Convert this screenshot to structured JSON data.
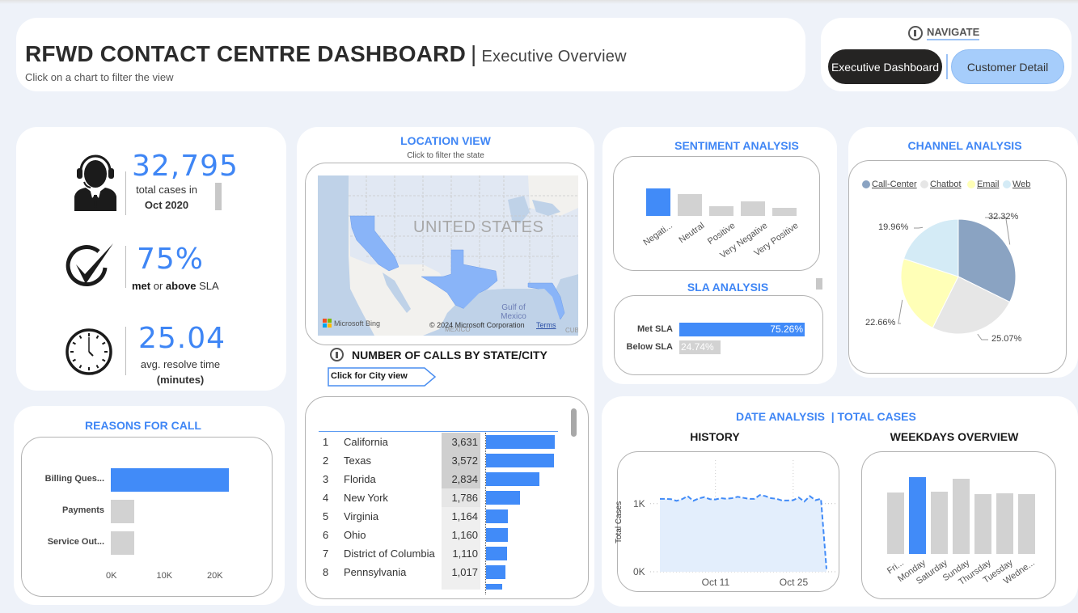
{
  "header": {
    "title": "RFWD CONTACT CENTRE DASHBOARD",
    "separator": "|",
    "subtitle": "Executive Overview",
    "hint": "Click on a chart to filter the view"
  },
  "navigate": {
    "title": "NAVIGATE",
    "buttons": [
      {
        "label": "Executive Dashboard",
        "active": true
      },
      {
        "label": "Customer Detail",
        "active": false
      }
    ]
  },
  "kpis": {
    "total_cases": {
      "value": "32,795",
      "label": "total cases in",
      "period": "Oct 2020",
      "icon": "headset-agent-icon"
    },
    "sla": {
      "value": "75%",
      "label_bold1": "met",
      "label_mid": " or ",
      "label_bold2": "above",
      "label_end": " SLA",
      "icon": "check-circle-icon"
    },
    "resolve": {
      "value": "25.04",
      "label": "avg. resolve time",
      "unit": "(minutes)",
      "icon": "clock-icon"
    }
  },
  "reasons": {
    "title": "REASONS FOR CALL",
    "chart_data": {
      "type": "bar",
      "orientation": "horizontal",
      "categories": [
        "Billing Ques...",
        "Payments",
        "Service Out..."
      ],
      "values": [
        23400,
        4700,
        4700
      ],
      "highlight": "Billing Ques...",
      "xticks": [
        "0K",
        "10K",
        "20K"
      ],
      "xlim": [
        0,
        24000
      ]
    }
  },
  "location": {
    "title": "LOCATION VIEW",
    "hint": "Click to filter the state",
    "map": {
      "country_label": "UNITED STATES",
      "gulf_label": "Gulf of Mexico",
      "mexico_label": "MEXICO",
      "cuba_label": "CUB",
      "bing_label": "Microsoft Bing",
      "copyright": "© 2024 Microsoft Corporation",
      "terms": "Terms",
      "highlighted_states": [
        "California",
        "Texas",
        "Florida"
      ]
    },
    "calls_title": "NUMBER OF CALLS BY STATE/CITY",
    "city_button": "Click for City view",
    "chart_data": {
      "type": "table",
      "rows": [
        {
          "rank": "1",
          "state": "California",
          "value": "3,631",
          "num": 3631
        },
        {
          "rank": "2",
          "state": "Texas",
          "value": "3,572",
          "num": 3572
        },
        {
          "rank": "3",
          "state": "Florida",
          "value": "2,834",
          "num": 2834
        },
        {
          "rank": "4",
          "state": "New York",
          "value": "1,786",
          "num": 1786
        },
        {
          "rank": "5",
          "state": "Virginia",
          "value": "1,164",
          "num": 1164
        },
        {
          "rank": "6",
          "state": "Ohio",
          "value": "1,160",
          "num": 1160
        },
        {
          "rank": "7",
          "state": "District of Columbia",
          "value": "1,110",
          "num": 1110
        },
        {
          "rank": "8",
          "state": "Pennsylvania",
          "value": "1,017",
          "num": 1017
        }
      ]
    }
  },
  "sentiment": {
    "title": "SENTIMENT ANALYSIS",
    "chart_data": {
      "type": "bar",
      "categories": [
        "Negati...",
        "Neutral",
        "Positive",
        "Very Negative",
        "Very Positive"
      ],
      "values": [
        10500,
        8400,
        3700,
        5700,
        3000
      ],
      "highlight": "Negati..."
    }
  },
  "sla": {
    "title": "SLA ANALYSIS",
    "chart_data": {
      "type": "bar",
      "orientation": "horizontal",
      "categories": [
        "Met SLA",
        "Below SLA"
      ],
      "values": [
        75.26,
        24.74
      ],
      "labels": [
        "75.26%",
        "24.74%"
      ]
    }
  },
  "channel": {
    "title": "CHANNEL ANALYSIS",
    "chart_data": {
      "type": "pie",
      "legend": "top-left",
      "slices": [
        {
          "name": "Call-Center",
          "value": 32.32,
          "label": "32.32%",
          "color": "#8aa3c2"
        },
        {
          "name": "Chatbot",
          "value": 25.07,
          "label": "25.07%",
          "color": "#e6e6e6"
        },
        {
          "name": "Email",
          "value": 22.66,
          "label": "22.66%",
          "color": "#ffffb7"
        },
        {
          "name": "Web",
          "value": 19.96,
          "label": "19.96%",
          "color": "#d4ebf6"
        }
      ]
    }
  },
  "date": {
    "title": "DATE ANALYSIS",
    "title_sep": "| TOTAL CASES",
    "history": {
      "title": "HISTORY",
      "chart_data": {
        "type": "area",
        "ylabel": "Total Cases",
        "yticks": [
          "0K",
          "1K"
        ],
        "ylim": [
          0,
          1400
        ],
        "xticks": [
          "Oct 11",
          "Oct 25"
        ],
        "xtick_days": [
          11,
          25
        ],
        "x": [
          1,
          2,
          3,
          4,
          5,
          6,
          7,
          8,
          9,
          10,
          11,
          12,
          13,
          14,
          15,
          16,
          17,
          18,
          19,
          20,
          21,
          22,
          23,
          24,
          25,
          26,
          27,
          28,
          29,
          30,
          31
        ],
        "values": [
          1070,
          1070,
          1065,
          1040,
          1065,
          1110,
          1040,
          1075,
          1095,
          1065,
          1060,
          1080,
          1070,
          1080,
          1100,
          1085,
          1070,
          1070,
          1125,
          1110,
          1080,
          1070,
          1045,
          1045,
          1050,
          1090,
          1030,
          1110,
          1050,
          1070,
          40
        ]
      }
    },
    "weekdays": {
      "title": "WEEKDAYS OVERVIEW",
      "chart_data": {
        "type": "bar",
        "categories": [
          "Fri...",
          "Monday",
          "Saturday",
          "Sunday",
          "Thursday",
          "Tuesday",
          "Wedne..."
        ],
        "values": [
          4500,
          5650,
          4550,
          5550,
          4400,
          4450,
          4380
        ],
        "highlight": "Monday"
      }
    }
  },
  "colors": {
    "accent": "#418bf8",
    "muted_bar": "#d2d2d2",
    "title_blue": "#3f86f5",
    "background": "#eef2f9"
  }
}
